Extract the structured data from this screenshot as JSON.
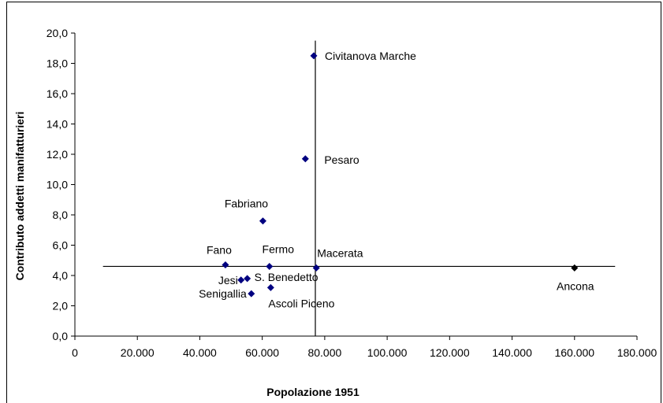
{
  "chart_data": {
    "type": "scatter",
    "title": "",
    "xlabel": "Popolazione 1951",
    "ylabel": "Contributo addetti manifatturieri",
    "xlim": [
      0,
      180000
    ],
    "ylim": [
      0,
      20
    ],
    "x_ticks": [
      0,
      20000,
      40000,
      60000,
      80000,
      100000,
      120000,
      140000,
      160000,
      180000
    ],
    "x_tick_labels": [
      "0",
      "20.000",
      "40.000",
      "60.000",
      "80.000",
      "100.000",
      "120.000",
      "140.000",
      "160.000",
      "180.000"
    ],
    "y_ticks": [
      0,
      2,
      4,
      6,
      8,
      10,
      12,
      14,
      16,
      18,
      20
    ],
    "y_tick_labels": [
      "0,0",
      "2,0",
      "4,0",
      "6,0",
      "8,0",
      "10,0",
      "12,0",
      "14,0",
      "16,0",
      "18,0",
      "20,0"
    ],
    "grid": false,
    "marker_color": "#000080",
    "highlight_color": "#000000",
    "reference_lines": {
      "vertical_x": 77000,
      "vertical_y_range": [
        0,
        19.5
      ],
      "horizontal_y": 4.6,
      "horizontal_x_range": [
        9000,
        173000
      ]
    },
    "points": [
      {
        "label": "Civitanova Marche",
        "x": 76500,
        "y": 18.5
      },
      {
        "label": "Pesaro",
        "x": 73800,
        "y": 11.7
      },
      {
        "label": "Fabriano",
        "x": 60200,
        "y": 7.6
      },
      {
        "label": "Fano",
        "x": 48200,
        "y": 4.7
      },
      {
        "label": "Fermo",
        "x": 62300,
        "y": 4.6
      },
      {
        "label": "Macerata",
        "x": 77300,
        "y": 4.5
      },
      {
        "label": "Jesi",
        "x": 53200,
        "y": 3.7
      },
      {
        "label": "S. Benedetto",
        "x": 55200,
        "y": 3.8
      },
      {
        "label": "Senigallia",
        "x": 56500,
        "y": 2.8
      },
      {
        "label": "Ascoli Piceno",
        "x": 62700,
        "y": 3.2
      },
      {
        "label": "Ancona",
        "x": 160000,
        "y": 4.5,
        "highlight": true
      }
    ]
  }
}
